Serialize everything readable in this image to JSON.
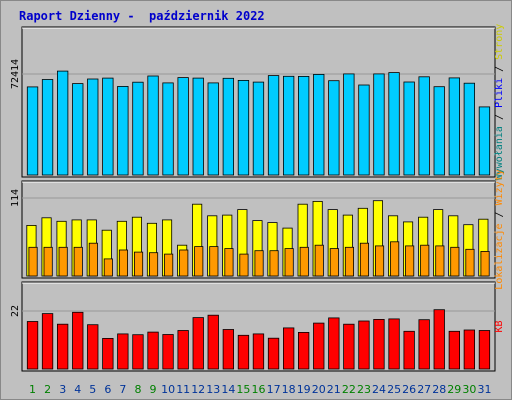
{
  "title": "Raport Dzienny -  październik 2022",
  "colors": {
    "background": "#c0c0c0",
    "hits": "#00ccff",
    "pages": "#ffff00",
    "visits": "#ff9900",
    "kb": "#ff0000",
    "weekday_label": "#003399",
    "weekend_label": "#008000",
    "title": "#0000cc"
  },
  "chart_data": [
    {
      "type": "bar",
      "panel": "top",
      "categories": [
        "1",
        "2",
        "3",
        "4",
        "5",
        "6",
        "7",
        "8",
        "9",
        "10",
        "11",
        "12",
        "13",
        "14",
        "15",
        "16",
        "17",
        "18",
        "19",
        "20",
        "21",
        "22",
        "23",
        "24",
        "25",
        "26",
        "27",
        "28",
        "29",
        "30",
        "31"
      ],
      "ylim": [
        0,
        72414
      ],
      "ytick_label": "72414",
      "right_label": [
        "Wywołania",
        " / ",
        "Pliki",
        " / ",
        "Strony"
      ],
      "right_label_colors": [
        "#008080",
        "#000000",
        "#0000ff",
        "#000000",
        "#cccc00"
      ],
      "series": [
        {
          "name": "Wywołania",
          "values": [
            63200,
            68500,
            74500,
            65500,
            68800,
            69500,
            63500,
            66500,
            71000,
            66000,
            69800,
            69500,
            66000,
            69300,
            67800,
            66600,
            71300,
            70800,
            70700,
            72100,
            67600,
            72500,
            64500,
            72500,
            73400,
            66700,
            70400,
            63300,
            69600,
            65800,
            48800
          ]
        }
      ]
    },
    {
      "type": "bar",
      "panel": "middle",
      "categories": [
        "1",
        "2",
        "3",
        "4",
        "5",
        "6",
        "7",
        "8",
        "9",
        "10",
        "11",
        "12",
        "13",
        "14",
        "15",
        "16",
        "17",
        "18",
        "19",
        "20",
        "21",
        "22",
        "23",
        "24",
        "25",
        "26",
        "27",
        "28",
        "29",
        "30",
        "31"
      ],
      "ylim": [
        0,
        114
      ],
      "ytick_label": "114",
      "right_label": [
        "Lokalizacje",
        " / ",
        "Wizyty"
      ],
      "right_label_colors": [
        "#ff8800",
        "#000000",
        "#ff8800"
      ],
      "series": [
        {
          "name": "Wizyty",
          "values": [
            74,
            85,
            80,
            82,
            82,
            67,
            80,
            86,
            77,
            82,
            45,
            105,
            88,
            89,
            97,
            81,
            78,
            70,
            105,
            109,
            97,
            89,
            99,
            110,
            88,
            79,
            86,
            97,
            88,
            75,
            83
          ]
        },
        {
          "name": "Lokalizacje",
          "values": [
            42,
            42,
            42,
            42,
            48,
            25,
            38,
            35,
            34,
            32,
            38,
            43,
            43,
            40,
            32,
            37,
            37,
            40,
            42,
            45,
            40,
            42,
            48,
            44,
            50,
            44,
            45,
            44,
            42,
            39,
            36
          ]
        }
      ]
    },
    {
      "type": "bar",
      "panel": "bottom",
      "categories": [
        "1",
        "2",
        "3",
        "4",
        "5",
        "6",
        "7",
        "8",
        "9",
        "10",
        "11",
        "12",
        "13",
        "14",
        "15",
        "16",
        "17",
        "18",
        "19",
        "20",
        "21",
        "22",
        "23",
        "24",
        "25",
        "26",
        "27",
        "28",
        "29",
        "30",
        "31"
      ],
      "ylim": [
        0,
        22
      ],
      "ytick_label": "22",
      "right_label": [
        "KB"
      ],
      "right_label_colors": [
        "#ff0000"
      ],
      "series": [
        {
          "name": "KB",
          "values": [
            18,
            21,
            17,
            21.5,
            16.8,
            11.6,
            13.3,
            13.0,
            14.0,
            13.1,
            14.6,
            19.5,
            20.4,
            15.0,
            12.8,
            13.3,
            11.7,
            15.6,
            13.9,
            17.4,
            19.4,
            17.0,
            18.2,
            18.8,
            19.0,
            14.3,
            18.7,
            22.5,
            14.3,
            14.8,
            14.6
          ]
        }
      ]
    }
  ],
  "x_axis": {
    "labels": [
      "1",
      "2",
      "3",
      "4",
      "5",
      "6",
      "7",
      "8",
      "9",
      "10",
      "11",
      "12",
      "13",
      "14",
      "15",
      "16",
      "17",
      "18",
      "19",
      "20",
      "21",
      "22",
      "23",
      "24",
      "25",
      "26",
      "27",
      "28",
      "29",
      "30",
      "31"
    ],
    "weekend": [
      1,
      2,
      8,
      9,
      15,
      16,
      22,
      23,
      29,
      30
    ]
  }
}
